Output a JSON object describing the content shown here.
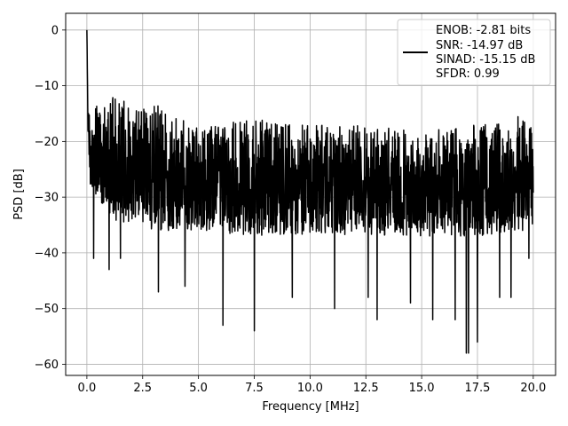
{
  "chart_data": {
    "type": "line",
    "title": "",
    "xlabel": "Frequency [MHz]",
    "ylabel": "PSD [dB]",
    "xlim": [
      -0.95,
      21.0
    ],
    "ylim": [
      -62.0,
      3.0
    ],
    "x_ticks": [
      0.0,
      2.5,
      5.0,
      7.5,
      10.0,
      12.5,
      15.0,
      17.5,
      20.0
    ],
    "x_tick_labels": [
      "0.0",
      "2.5",
      "5.0",
      "7.5",
      "10.0",
      "12.5",
      "15.0",
      "17.5",
      "20.0"
    ],
    "y_ticks": [
      0,
      -10,
      -20,
      -30,
      -40,
      -50,
      -60
    ],
    "y_tick_labels": [
      "0",
      "−10",
      "−20",
      "−30",
      "−40",
      "−50",
      "−60"
    ],
    "grid": true,
    "legend": {
      "placement": "top-right",
      "line_color": "#000000",
      "entries": [
        "ENOB: -2.81 bits",
        "SNR: -14.97 dB",
        "SINAD: -15.15 dB",
        "SFDR: 0.99"
      ]
    },
    "series": [
      {
        "color": "#000000",
        "x_range": [
          0.0,
          20.0
        ],
        "points": 2048,
        "start_values": [
          0,
          -3,
          -7,
          -10,
          -14,
          -18
        ],
        "upper_envelope": [
          [
            0.2,
            -14
          ],
          [
            1.0,
            -12
          ],
          [
            3.0,
            -13
          ],
          [
            5.0,
            -17
          ],
          [
            7.5,
            -16
          ],
          [
            10.0,
            -17
          ],
          [
            12.5,
            -17
          ],
          [
            15.0,
            -18
          ],
          [
            17.5,
            -17
          ],
          [
            20.0,
            -15
          ]
        ],
        "lower_envelope": [
          [
            0.2,
            -28
          ],
          [
            1.0,
            -34
          ],
          [
            3.0,
            -36
          ],
          [
            5.0,
            -36
          ],
          [
            7.5,
            -37
          ],
          [
            10.0,
            -37
          ],
          [
            12.5,
            -37
          ],
          [
            15.0,
            -37
          ],
          [
            17.5,
            -37
          ],
          [
            20.0,
            -36
          ]
        ],
        "dips": [
          [
            0.3,
            -41
          ],
          [
            1.0,
            -43
          ],
          [
            1.5,
            -41
          ],
          [
            3.2,
            -47
          ],
          [
            4.4,
            -46
          ],
          [
            6.1,
            -53
          ],
          [
            7.5,
            -54
          ],
          [
            9.2,
            -48
          ],
          [
            11.1,
            -50
          ],
          [
            12.6,
            -48
          ],
          [
            13.0,
            -52
          ],
          [
            14.5,
            -49
          ],
          [
            15.5,
            -52
          ],
          [
            16.5,
            -52
          ],
          [
            17.0,
            -58
          ],
          [
            17.1,
            -58
          ],
          [
            17.5,
            -56
          ],
          [
            18.5,
            -48
          ],
          [
            19.0,
            -48
          ],
          [
            19.8,
            -41
          ]
        ]
      }
    ]
  }
}
